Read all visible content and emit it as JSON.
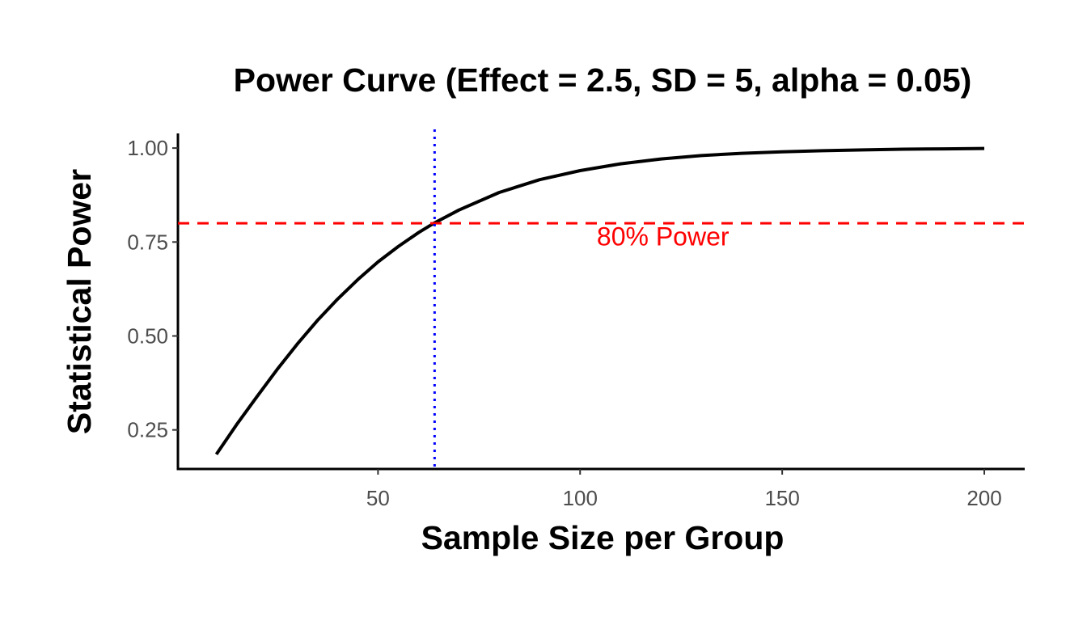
{
  "chart_data": {
    "type": "line",
    "title": "Power Curve (Effect = 2.5, SD = 5, alpha = 0.05)",
    "xlabel": "Sample Size per Group",
    "ylabel": "Statistical Power",
    "xlim": [
      0.5,
      210
    ],
    "ylim": [
      0.146,
      1.039
    ],
    "grid": false,
    "x_ticks": [
      50,
      100,
      150,
      200
    ],
    "x_tick_labels": [
      "50",
      "100",
      "150",
      "200"
    ],
    "y_ticks": [
      0.25,
      0.5,
      0.75,
      1.0
    ],
    "y_tick_labels": [
      "0.25",
      "0.50",
      "0.75",
      "1.00"
    ],
    "series": [
      {
        "name": "power",
        "color": "#000000",
        "x": [
          10,
          15,
          20,
          25,
          30,
          35,
          40,
          45,
          50,
          55,
          60,
          64,
          70,
          80,
          90,
          100,
          110,
          120,
          130,
          140,
          150,
          160,
          170,
          180,
          190,
          200
        ],
        "y": [
          0.185,
          0.264,
          0.338,
          0.41,
          0.478,
          0.541,
          0.598,
          0.65,
          0.697,
          0.738,
          0.775,
          0.801,
          0.835,
          0.882,
          0.916,
          0.94,
          0.958,
          0.971,
          0.98,
          0.986,
          0.99,
          0.993,
          0.995,
          0.997,
          0.998,
          0.999
        ]
      }
    ],
    "reference_lines": [
      {
        "orientation": "horizontal",
        "value": 0.8,
        "color": "#ff0000",
        "style": "dashed"
      },
      {
        "orientation": "vertical",
        "value": 64,
        "color": "#0000ff",
        "style": "dotted"
      }
    ],
    "annotations": [
      {
        "text": "80% Power",
        "x": 120.5,
        "y": 0.765,
        "color": "#ff0000"
      }
    ]
  }
}
